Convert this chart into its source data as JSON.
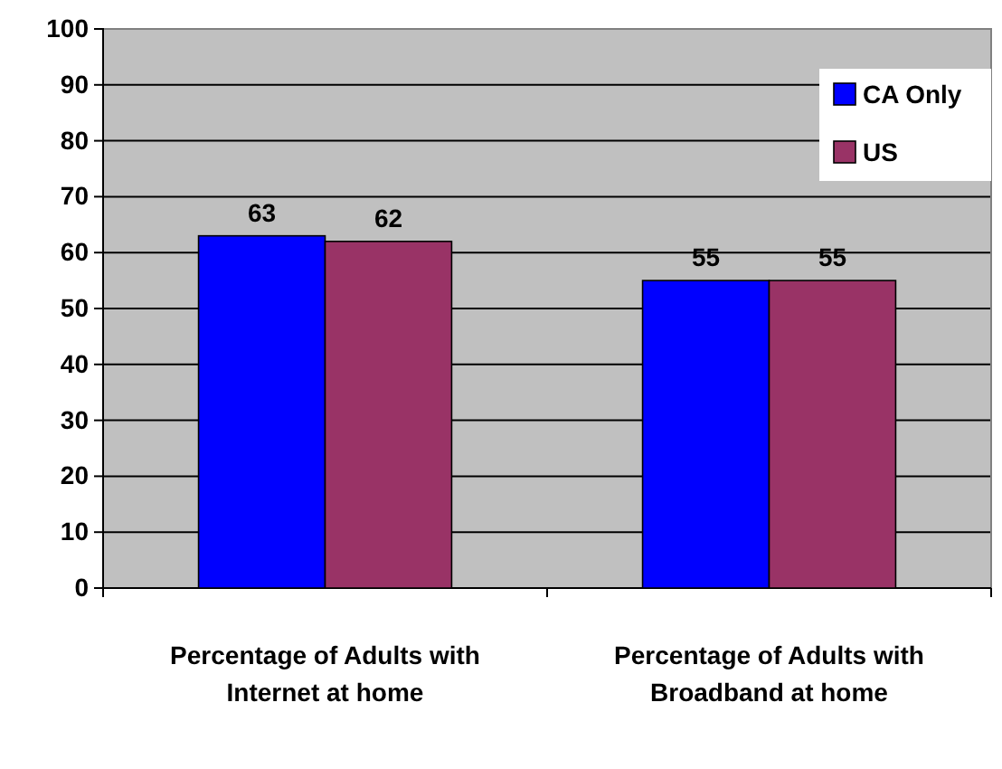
{
  "chart_data": {
    "type": "bar",
    "categories": [
      "Percentage of Adults with Internet at home",
      "Percentage of Adults with Broadband at home"
    ],
    "series": [
      {
        "name": "CA Only",
        "color": "#0000ff",
        "values": [
          63,
          55
        ]
      },
      {
        "name": "US",
        "color": "#993366",
        "values": [
          62,
          55
        ]
      }
    ],
    "ylim": [
      0,
      100
    ],
    "yticks": [
      0,
      10,
      20,
      30,
      40,
      50,
      60,
      70,
      80,
      90,
      100
    ],
    "grid": "y",
    "legend": "top right",
    "data_labels": true
  }
}
